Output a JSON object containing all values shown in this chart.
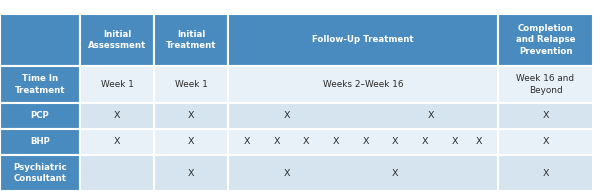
{
  "header_bg": "#4a8bbf",
  "header_text": "#ffffff",
  "row_bg_even": "#d6e4f0",
  "row_bg_odd": "#e8f1f8",
  "row_label_bg": "#4a8bbf",
  "row_label_text": "#ffffff",
  "border_color": "#ffffff",
  "body_text_color": "#2c2c2c",
  "col_headers": [
    "Initial\nAssessment",
    "Initial\nTreatment",
    "Follow-Up Treatment",
    "Completion\nand Relapse\nPrevention"
  ],
  "row_labels": [
    "Time In\nTreatment",
    "PCP",
    "BHP",
    "Psychiatric\nConsultant"
  ],
  "time_row": [
    "Week 1",
    "Week 1",
    "Weeks 2–Week 16",
    "Week 16 and\nBeyond"
  ],
  "pcp_marks": [
    true,
    true,
    [
      0.22,
      0.75
    ],
    true
  ],
  "bhp_marks": [
    true,
    true,
    [
      0.07,
      0.18,
      0.29,
      0.4,
      0.51,
      0.62,
      0.73,
      0.84,
      0.93
    ],
    true
  ],
  "psych_marks": [
    false,
    true,
    [
      0.22,
      0.62
    ],
    true
  ],
  "fig_w": 5.93,
  "fig_h": 1.91,
  "dpi": 100
}
